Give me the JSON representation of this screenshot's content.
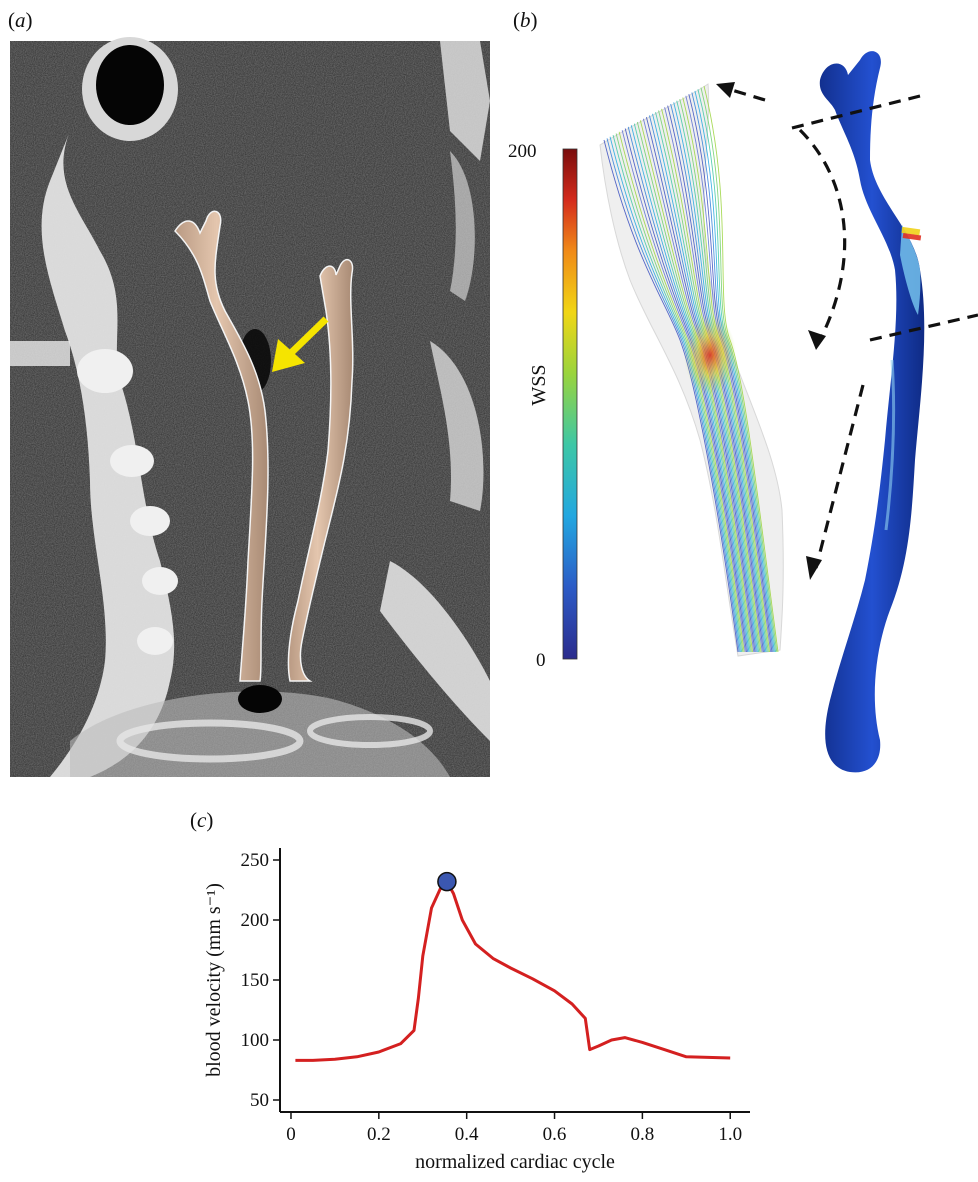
{
  "panel_labels": {
    "a": "a",
    "b": "b",
    "c": "c"
  },
  "colors": {
    "ct_background": "#2c2c2c",
    "vessel": "#dcbca3",
    "arrow_highlight": "#f5e400",
    "vessel_model": "#1e44b8",
    "curve": "#d42020",
    "peak_marker": "#3b57b0"
  },
  "wss_colorbar": {
    "label": "WSS",
    "max_label": "200",
    "min_label": "0",
    "colors": [
      "#2b2b8c",
      "#2c5bc6",
      "#22a7e0",
      "#3dc7a6",
      "#9ad43c",
      "#f1d614",
      "#f08a18",
      "#d42b1c",
      "#7a0d0d"
    ]
  },
  "chart_data": {
    "type": "line",
    "xlabel": "normalized cardiac cycle",
    "ylabel": "blood velocity (mm s⁻¹)",
    "xlim": [
      0,
      1.0
    ],
    "ylim": [
      40,
      260
    ],
    "x_ticks": [
      "0",
      "0.2",
      "0.4",
      "0.6",
      "0.8",
      "1.0"
    ],
    "y_ticks": [
      "50",
      "100",
      "150",
      "200",
      "250"
    ],
    "series": [
      {
        "x": [
          0.01,
          0.05,
          0.1,
          0.15,
          0.2,
          0.25,
          0.28,
          0.29,
          0.3,
          0.32,
          0.34,
          0.355,
          0.37,
          0.39,
          0.42,
          0.46,
          0.5,
          0.55,
          0.6,
          0.64,
          0.67,
          0.68,
          0.7,
          0.73,
          0.76,
          0.8,
          0.85,
          0.9,
          1.0
        ],
        "y": [
          83,
          83,
          84,
          86,
          90,
          97,
          108,
          135,
          170,
          210,
          226,
          232,
          222,
          200,
          180,
          168,
          160,
          151,
          141,
          130,
          118,
          92,
          95,
          100,
          102,
          98,
          92,
          86,
          85
        ]
      }
    ],
    "highlight_point": {
      "x": 0.355,
      "y": 232
    }
  }
}
